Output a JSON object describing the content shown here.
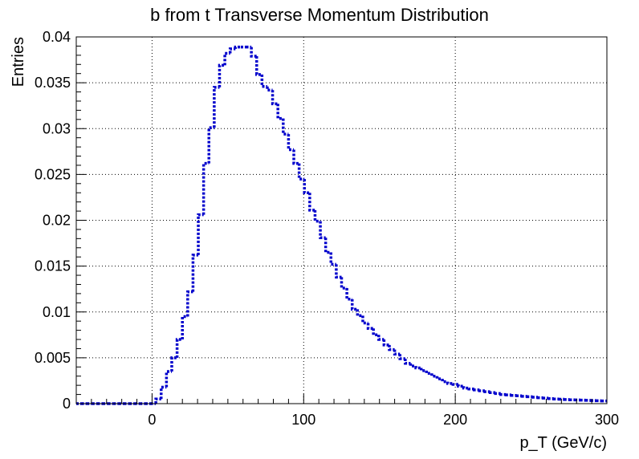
{
  "chart_data": {
    "type": "histogram",
    "title": "b from t Transverse Momentum Distribution",
    "xlabel": "p_T (GeV/c)",
    "ylabel": "Entries",
    "xlim": [
      -50,
      300
    ],
    "ylim": [
      0,
      0.04
    ],
    "grid": true,
    "line_style": "dotted",
    "x_ticks": [
      0,
      100,
      200,
      300
    ],
    "x_tick_labels": [
      "0",
      "100",
      "200",
      "300"
    ],
    "y_ticks": [
      0,
      0.005,
      0.01,
      0.015,
      0.02,
      0.025,
      0.03,
      0.035,
      0.04
    ],
    "y_tick_labels": [
      "0",
      "0.005",
      "0.01",
      "0.015",
      "0.02",
      "0.025",
      "0.03",
      "0.035",
      "0.04"
    ],
    "bin_width": 3.5,
    "bin_start": -50,
    "values": [
      0,
      0,
      0,
      0,
      0,
      0,
      0,
      0,
      0,
      0,
      0,
      0,
      0,
      0,
      0,
      0.0005,
      0.0018,
      0.0035,
      0.005,
      0.007,
      0.0095,
      0.0122,
      0.0162,
      0.0206,
      0.0262,
      0.0301,
      0.0345,
      0.0369,
      0.0382,
      0.0387,
      0.0389,
      0.0389,
      0.0389,
      0.0379,
      0.0359,
      0.0346,
      0.0342,
      0.0327,
      0.0311,
      0.0294,
      0.0277,
      0.0262,
      0.0245,
      0.023,
      0.0211,
      0.0199,
      0.0181,
      0.0165,
      0.0152,
      0.0138,
      0.0126,
      0.0114,
      0.0103,
      0.0096,
      0.0088,
      0.0082,
      0.0075,
      0.007,
      0.0064,
      0.0059,
      0.0054,
      0.0049,
      0.0044,
      0.0041,
      0.0039,
      0.0036,
      0.0033,
      0.003,
      0.0027,
      0.0024,
      0.0022,
      0.0021,
      0.0019,
      0.0017,
      0.0016,
      0.0015,
      0.0014,
      0.0013,
      0.0012,
      0.0011,
      0.001,
      0.00095,
      0.0009,
      0.00085,
      0.0008,
      0.00075,
      0.0007,
      0.00065,
      0.0006,
      0.00055,
      0.0005,
      0.00048,
      0.00045,
      0.00042,
      0.0004,
      0.00038,
      0.00036,
      0.00034,
      0.00032,
      0.0003
    ],
    "colors": {
      "line": "#0000cc",
      "grid": "#000000",
      "frame": "#000000"
    }
  }
}
